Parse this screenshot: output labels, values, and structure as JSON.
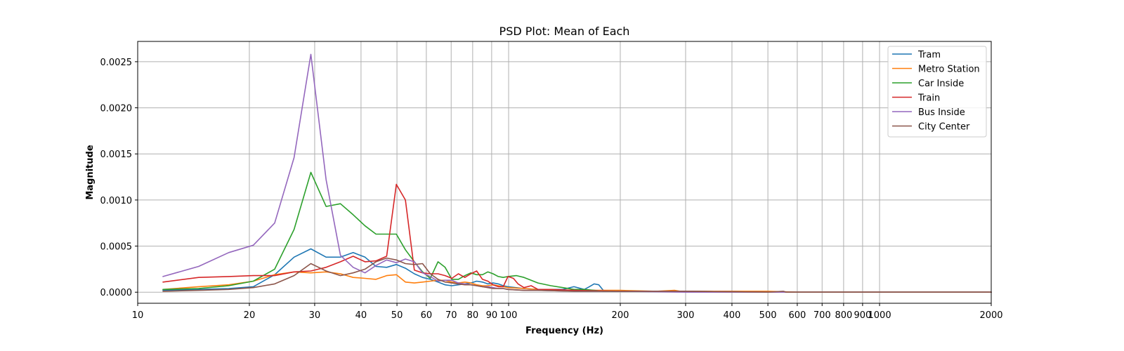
{
  "chart_data": {
    "type": "line",
    "title": "PSD Plot: Mean of Each",
    "xlabel": "Frequency (Hz)",
    "ylabel": "Magnitude",
    "xscale": "log",
    "xlim": [
      10,
      2000
    ],
    "ylim": [
      -0.00012,
      0.00272
    ],
    "grid": true,
    "legend_position": "top-right",
    "x_ticks": [
      10,
      20,
      30,
      40,
      50,
      60,
      70,
      80,
      90,
      100,
      200,
      300,
      400,
      500,
      600,
      700,
      800,
      900,
      1000,
      2000
    ],
    "x_tick_labels": [
      "10",
      "20",
      "30",
      "40",
      "50",
      "60",
      "70",
      "80",
      "90",
      "100",
      "200",
      "300",
      "400",
      "500",
      "600",
      "700",
      "800",
      "900",
      "1000",
      "2000"
    ],
    "y_ticks": [
      0,
      0.0005,
      0.001,
      0.0015,
      0.002,
      0.0025
    ],
    "y_tick_labels": [
      "0.0000",
      "0.0005",
      "0.0010",
      "0.0015",
      "0.0020",
      "0.0025"
    ],
    "series": [
      {
        "name": "Tram",
        "color": "#1f77b4",
        "x": [
          11.7,
          14.6,
          17.6,
          20.5,
          23.4,
          26.4,
          29.3,
          32.2,
          35.2,
          38.1,
          41.0,
          43.9,
          46.9,
          49.8,
          52.7,
          55.7,
          58.6,
          61.5,
          64.5,
          67.4,
          70.3,
          73.2,
          76.2,
          79.1,
          82.0,
          85.0,
          87.9,
          90.8,
          93.8,
          96.7,
          99.6,
          110,
          120,
          130,
          140,
          150,
          160,
          165,
          170,
          175,
          180,
          190,
          200,
          250,
          300,
          400,
          500,
          600,
          800,
          1000,
          1500,
          2000
        ],
        "y": [
          2e-05,
          3e-05,
          4e-05,
          6e-05,
          0.00019,
          0.00038,
          0.00047,
          0.00038,
          0.00038,
          0.00043,
          0.00038,
          0.00028,
          0.00027,
          0.0003,
          0.00026,
          0.0002,
          0.00016,
          0.00014,
          0.00011,
          8e-05,
          7e-05,
          8e-05,
          9e-05,
          0.0001,
          0.00012,
          0.00011,
          9e-05,
          0.0001,
          9e-05,
          7e-05,
          6e-05,
          4e-05,
          3e-05,
          3e-05,
          3e-05,
          6e-05,
          3e-05,
          6e-05,
          9e-05,
          8e-05,
          2e-05,
          1e-05,
          1e-05,
          1e-05,
          1e-05,
          0.0,
          0.0,
          0.0,
          0.0,
          0.0,
          0.0,
          0.0
        ]
      },
      {
        "name": "Metro Station",
        "color": "#ff7f0e",
        "x": [
          11.7,
          14.6,
          17.6,
          20.5,
          23.4,
          26.4,
          29.3,
          32.2,
          35.2,
          38.1,
          41.0,
          43.9,
          46.9,
          49.8,
          52.7,
          55.7,
          58.6,
          61.5,
          64.5,
          67.4,
          70.3,
          73.2,
          76.2,
          79.1,
          82.0,
          85.0,
          87.9,
          90.8,
          93.8,
          96.7,
          99.6,
          110,
          120,
          150,
          200,
          250,
          280,
          290,
          300,
          400,
          500,
          600,
          800,
          1000,
          1500,
          2000
        ],
        "y": [
          3e-05,
          6e-05,
          8e-05,
          0.00012,
          0.00019,
          0.00022,
          0.00021,
          0.00022,
          0.0002,
          0.00016,
          0.00015,
          0.00014,
          0.00018,
          0.00019,
          0.00011,
          0.0001,
          0.00011,
          0.00012,
          0.00013,
          0.00013,
          0.00011,
          0.0001,
          0.00011,
          0.0001,
          8e-05,
          7e-05,
          7e-05,
          8e-05,
          7e-05,
          6e-05,
          5e-05,
          4e-05,
          3e-05,
          2e-05,
          2e-05,
          1e-05,
          2e-05,
          1e-05,
          1e-05,
          1e-05,
          1e-05,
          0.0,
          0.0,
          0.0,
          0.0,
          0.0
        ]
      },
      {
        "name": "Car Inside",
        "color": "#2ca02c",
        "x": [
          11.7,
          14.6,
          17.6,
          20.5,
          23.4,
          26.4,
          29.3,
          32.2,
          35.2,
          38.1,
          41.0,
          43.9,
          46.9,
          49.8,
          52.7,
          55.7,
          58.6,
          61.5,
          64.5,
          67.4,
          70.3,
          73.2,
          76.2,
          79.1,
          82.0,
          85.0,
          87.9,
          90.8,
          93.8,
          96.7,
          99.6,
          105,
          110,
          120,
          130,
          140,
          150,
          160,
          170,
          180,
          200,
          300,
          500,
          1000,
          2000
        ],
        "y": [
          3e-05,
          4e-05,
          7e-05,
          0.00012,
          0.00025,
          0.00068,
          0.0013,
          0.00093,
          0.00096,
          0.00084,
          0.00072,
          0.00063,
          0.00063,
          0.00063,
          0.00046,
          0.00033,
          0.00022,
          0.00015,
          0.00033,
          0.00027,
          0.00014,
          0.00014,
          0.00018,
          0.00021,
          0.00019,
          0.00019,
          0.00022,
          0.0002,
          0.00017,
          0.00016,
          0.00017,
          0.00018,
          0.00016,
          0.0001,
          7e-05,
          5e-05,
          3e-05,
          3e-05,
          2e-05,
          1e-05,
          1e-05,
          1e-05,
          0.0,
          0.0,
          0.0
        ]
      },
      {
        "name": "Train",
        "color": "#d62728",
        "x": [
          11.7,
          14.6,
          17.6,
          20.5,
          23.4,
          26.4,
          29.3,
          32.2,
          35.2,
          38.1,
          41.0,
          43.9,
          46.9,
          49.8,
          52.7,
          55.7,
          58.6,
          61.5,
          64.5,
          67.4,
          70.3,
          73.2,
          76.2,
          79.1,
          82.0,
          85.0,
          87.9,
          90.8,
          93.8,
          96.7,
          99.6,
          103,
          106,
          110,
          115,
          120,
          130,
          150,
          200,
          300,
          500,
          1000,
          2000
        ],
        "y": [
          0.00011,
          0.00016,
          0.00017,
          0.00018,
          0.00018,
          0.00022,
          0.00023,
          0.00027,
          0.00033,
          0.00039,
          0.00033,
          0.00034,
          0.00039,
          0.00117,
          0.001,
          0.00024,
          0.00021,
          0.0002,
          0.0002,
          0.00018,
          0.00015,
          0.0002,
          0.00016,
          0.0002,
          0.00023,
          0.00014,
          0.00012,
          8e-05,
          6e-05,
          6e-05,
          0.00017,
          0.00015,
          9e-05,
          5e-05,
          7e-05,
          3e-05,
          3e-05,
          2e-05,
          1e-05,
          1e-05,
          0.0,
          0.0,
          0.0
        ]
      },
      {
        "name": "Bus Inside",
        "color": "#9467bd",
        "x": [
          11.7,
          14.6,
          17.6,
          20.5,
          23.4,
          26.4,
          29.3,
          32.2,
          35.2,
          38.1,
          41.0,
          43.9,
          46.9,
          49.8,
          52.7,
          55.7,
          58.6,
          61.5,
          64.5,
          67.4,
          70.3,
          73.2,
          76.2,
          79.1,
          82.0,
          85.0,
          87.9,
          90.8,
          93.8,
          96.7,
          99.6,
          110,
          120,
          150,
          200,
          300,
          500,
          1000,
          2000
        ],
        "y": [
          0.00017,
          0.00028,
          0.00043,
          0.00051,
          0.00075,
          0.00146,
          0.00258,
          0.00122,
          0.0004,
          0.00027,
          0.00021,
          0.00029,
          0.00035,
          0.00032,
          0.00036,
          0.00033,
          0.00021,
          0.00017,
          0.00012,
          0.00013,
          0.00013,
          0.0001,
          9e-05,
          8e-05,
          7e-05,
          6e-05,
          6e-05,
          5e-05,
          4e-05,
          4e-05,
          3e-05,
          2e-05,
          2e-05,
          1e-05,
          1e-05,
          0.0,
          0.0,
          0.0,
          0.0
        ]
      },
      {
        "name": "City Center",
        "color": "#8c564b",
        "x": [
          11.7,
          14.6,
          17.6,
          20.5,
          23.4,
          26.4,
          29.3,
          32.2,
          35.2,
          38.1,
          41.0,
          43.9,
          46.9,
          49.8,
          52.7,
          55.7,
          58.6,
          61.5,
          64.5,
          67.4,
          70.3,
          73.2,
          76.2,
          79.1,
          82.0,
          85.0,
          87.9,
          90.8,
          93.8,
          96.7,
          99.6,
          110,
          120,
          150,
          200,
          300,
          500,
          550,
          560,
          1000,
          2000
        ],
        "y": [
          1e-05,
          2e-05,
          3e-05,
          5e-05,
          9e-05,
          0.00018,
          0.00031,
          0.00023,
          0.00018,
          0.00021,
          0.00025,
          0.00033,
          0.00037,
          0.00035,
          0.00031,
          0.0003,
          0.00031,
          0.0002,
          0.00014,
          0.00011,
          0.0001,
          9e-05,
          8e-05,
          8e-05,
          7e-05,
          6e-05,
          5e-05,
          4e-05,
          4e-05,
          4e-05,
          3e-05,
          2e-05,
          2e-05,
          1e-05,
          1e-05,
          1e-05,
          0.0,
          1e-05,
          0.0,
          0.0,
          0.0
        ]
      }
    ]
  }
}
